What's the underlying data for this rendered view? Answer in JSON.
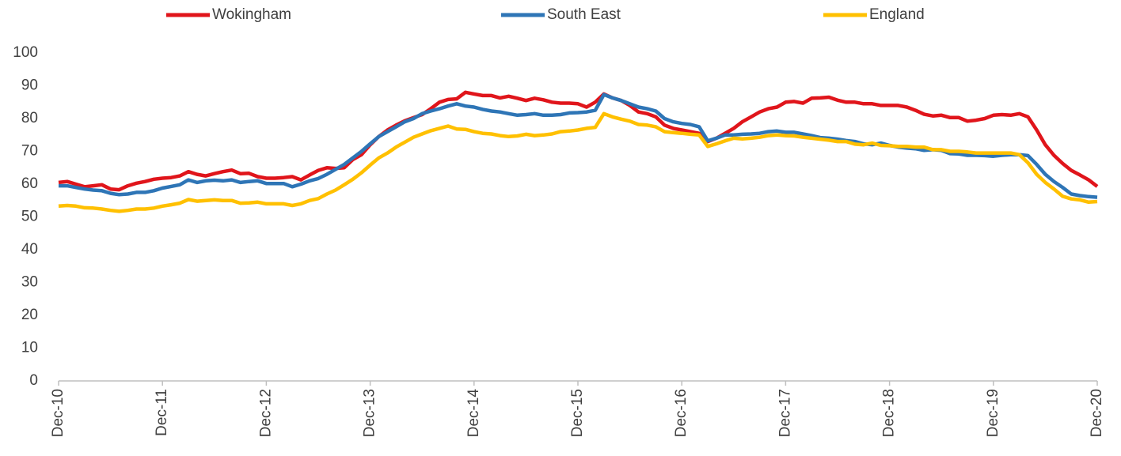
{
  "chart_data": {
    "type": "line",
    "categories": [
      "Dec-10",
      null,
      null,
      null,
      null,
      null,
      null,
      null,
      null,
      null,
      null,
      null,
      "Dec-11",
      null,
      null,
      null,
      null,
      null,
      null,
      null,
      null,
      null,
      null,
      null,
      "Dec-12",
      null,
      null,
      null,
      null,
      null,
      null,
      null,
      null,
      null,
      null,
      null,
      "Dec-13",
      null,
      null,
      null,
      null,
      null,
      null,
      null,
      null,
      null,
      null,
      null,
      "Dec-14",
      null,
      null,
      null,
      null,
      null,
      null,
      null,
      null,
      null,
      null,
      null,
      "Dec-15",
      null,
      null,
      null,
      null,
      null,
      null,
      null,
      null,
      null,
      null,
      null,
      "Dec-16",
      null,
      null,
      null,
      null,
      null,
      null,
      null,
      null,
      null,
      null,
      null,
      "Dec-17",
      null,
      null,
      null,
      null,
      null,
      null,
      null,
      null,
      null,
      null,
      null,
      "Dec-18",
      null,
      null,
      null,
      null,
      null,
      null,
      null,
      null,
      null,
      null,
      null,
      "Dec-19",
      null,
      null,
      null,
      null,
      null,
      null,
      null,
      null,
      null,
      null,
      null,
      "Dec-20"
    ],
    "series": [
      {
        "name": "Wokingham",
        "color": "#e0151b",
        "values": [
          60.5,
          60.8,
          60,
          59.2,
          59.5,
          59.8,
          58.5,
          58.3,
          59.5,
          60.3,
          60.8,
          61.5,
          61.8,
          62,
          62.5,
          63.8,
          63,
          62.5,
          63.2,
          63.8,
          64.3,
          63.2,
          63.3,
          62.3,
          61.8,
          61.8,
          62,
          62.3,
          61.3,
          62.8,
          64.2,
          65,
          64.8,
          65,
          67.5,
          69,
          72,
          74.5,
          76.5,
          78,
          79.3,
          80.3,
          81.2,
          83,
          85,
          85.8,
          86,
          88,
          87.5,
          87,
          87,
          86.3,
          86.8,
          86.2,
          85.5,
          86.2,
          85.7,
          85,
          84.7,
          84.7,
          84.5,
          83.5,
          85,
          87.5,
          86.3,
          85.5,
          84,
          82,
          81.5,
          80.5,
          78,
          77,
          76.5,
          76,
          75.5,
          73,
          74,
          75.5,
          77,
          79,
          80.5,
          82,
          83,
          83.5,
          85,
          85.2,
          84.7,
          86.2,
          86.3,
          86.5,
          85.6,
          85,
          85,
          84.5,
          84.5,
          84,
          84,
          84,
          83.5,
          82.5,
          81.3,
          80.8,
          81,
          80.3,
          80.3,
          79.2,
          79.5,
          80,
          81,
          81.2,
          81,
          81.5,
          80.5,
          76.5,
          72,
          68.8,
          66.3,
          64.2,
          62.8,
          61.3,
          59.3
        ]
      },
      {
        "name": "South East",
        "color": "#2e75b6",
        "values": [
          59.5,
          59.5,
          59,
          58.5,
          58.2,
          58,
          57.2,
          56.8,
          57,
          57.5,
          57.5,
          58,
          58.8,
          59.3,
          59.8,
          61.3,
          60.5,
          61,
          61.2,
          61,
          61.3,
          60.5,
          60.8,
          61,
          60.2,
          60.2,
          60.2,
          59.2,
          60,
          61,
          61.7,
          63,
          64.5,
          66,
          68,
          70,
          72.3,
          74.5,
          76,
          77.5,
          79,
          80,
          81.5,
          82.3,
          83,
          83.8,
          84.5,
          83.8,
          83.5,
          82.8,
          82.3,
          82,
          81.5,
          81,
          81.2,
          81.5,
          81,
          81,
          81.2,
          81.7,
          81.8,
          82,
          82.5,
          87.3,
          86.3,
          85.5,
          84.5,
          83.5,
          83,
          82.3,
          80,
          79,
          78.5,
          78.2,
          77.5,
          73.2,
          74,
          75,
          75,
          75.2,
          75.3,
          75.5,
          76,
          76.2,
          75.8,
          75.8,
          75.3,
          74.8,
          74.2,
          74,
          73.7,
          73.3,
          73,
          72.3,
          72,
          72.5,
          71.8,
          71.3,
          71,
          70.8,
          70.3,
          70.5,
          70.3,
          69.3,
          69.2,
          68.8,
          68.8,
          68.7,
          68.5,
          68.8,
          69,
          69,
          68.7,
          66,
          63,
          60.8,
          59,
          57,
          56.5,
          56.2,
          56
        ]
      },
      {
        "name": "England",
        "color": "#ffc000",
        "values": [
          53.3,
          53.5,
          53.3,
          52.8,
          52.7,
          52.4,
          52,
          51.7,
          52,
          52.4,
          52.4,
          52.7,
          53.3,
          53.7,
          54.2,
          55.3,
          54.8,
          55,
          55.2,
          55,
          55,
          54.2,
          54.3,
          54.5,
          54,
          54,
          54,
          53.5,
          54,
          55,
          55.6,
          57,
          58.2,
          59.8,
          61.5,
          63.5,
          65.8,
          68,
          69.5,
          71.3,
          72.8,
          74.3,
          75.3,
          76.3,
          77,
          77.7,
          76.8,
          76.7,
          76,
          75.5,
          75.3,
          74.8,
          74.5,
          74.7,
          75.2,
          74.8,
          75,
          75.3,
          76,
          76.2,
          76.5,
          77,
          77.3,
          81.5,
          80.5,
          79.8,
          79.2,
          78.2,
          78,
          77.5,
          76,
          75.7,
          75.5,
          75.2,
          75,
          71.5,
          72.3,
          73.2,
          74,
          73.8,
          74,
          74.3,
          74.8,
          75,
          74.8,
          74.7,
          74.3,
          74,
          73.7,
          73.4,
          73,
          73,
          72.2,
          72,
          72.5,
          71.8,
          71.7,
          71.5,
          71.5,
          71.3,
          71.3,
          70.5,
          70.5,
          70,
          70,
          69.8,
          69.5,
          69.5,
          69.5,
          69.5,
          69.5,
          69,
          66.5,
          63,
          60.5,
          58.5,
          56.3,
          55.5,
          55.2,
          54.5,
          54.7
        ]
      }
    ],
    "ylim": [
      0,
      100
    ],
    "yticks": [
      0,
      10,
      20,
      30,
      40,
      50,
      60,
      70,
      80,
      90,
      100
    ],
    "grid": false,
    "legend": "top"
  }
}
